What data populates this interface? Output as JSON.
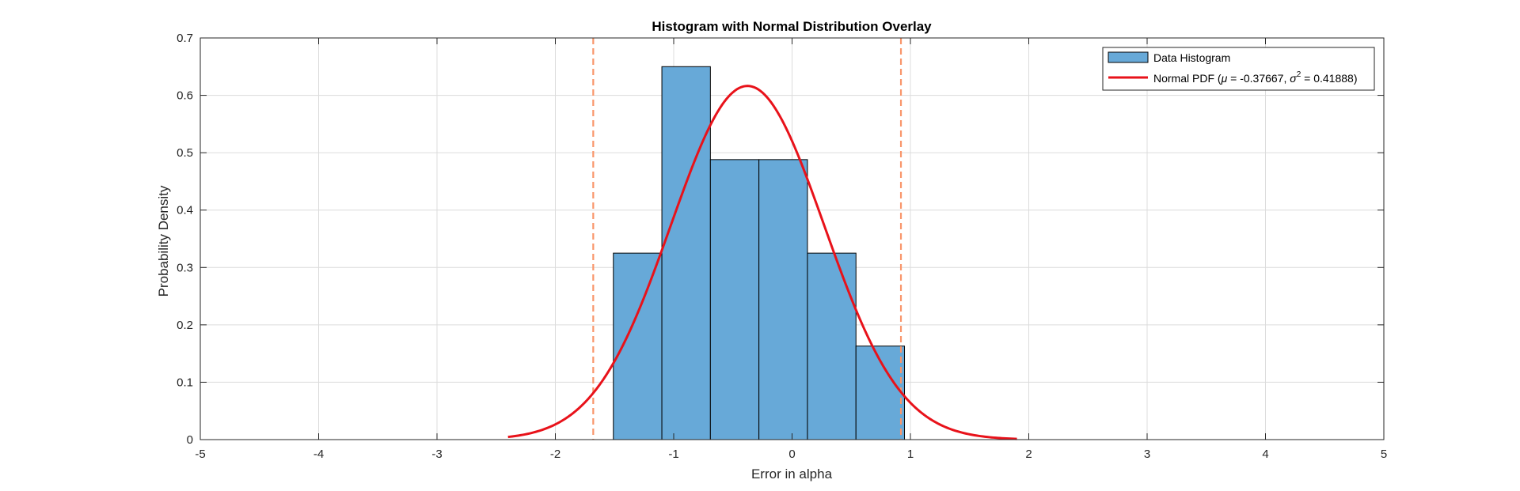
{
  "chart_data": {
    "type": "bar",
    "title": "Histogram with Normal Distribution Overlay",
    "xlabel": "Error in alpha",
    "ylabel": "Probability Density",
    "xlim": [
      -5,
      5
    ],
    "ylim": [
      0,
      0.7
    ],
    "xticks": [
      "-5",
      "-4",
      "-3",
      "-2",
      "-1",
      "0",
      "1",
      "2",
      "3",
      "4",
      "5"
    ],
    "yticks": [
      "0",
      "0.1",
      "0.2",
      "0.3",
      "0.4",
      "0.5",
      "0.6",
      "0.7"
    ],
    "grid": true,
    "legend_position": "top-right",
    "histogram": {
      "name": "Data Histogram",
      "bin_edges": [
        -1.51,
        -1.1,
        -0.69,
        -0.28,
        0.13,
        0.54,
        0.95
      ],
      "values": [
        0.325,
        0.65,
        0.488,
        0.488,
        0.325,
        0.163
      ],
      "color": "#67A9D8",
      "edge_color": "#000000"
    },
    "pdf": {
      "name_prefix": "Normal PDF (",
      "mu_symbol": "μ",
      "mu_text": " = -0.37667, ",
      "sigma_symbol": "σ",
      "sigma_exp": "2",
      "sigma_text": " = 0.41888)",
      "mu": -0.37667,
      "sigma_squared": 0.41888,
      "x_range": [
        -2.4,
        1.9
      ],
      "color": "#E8121A"
    },
    "reference_lines": {
      "x": [
        -1.68,
        0.92
      ],
      "color": "#F9966B",
      "style": "dashed"
    }
  }
}
